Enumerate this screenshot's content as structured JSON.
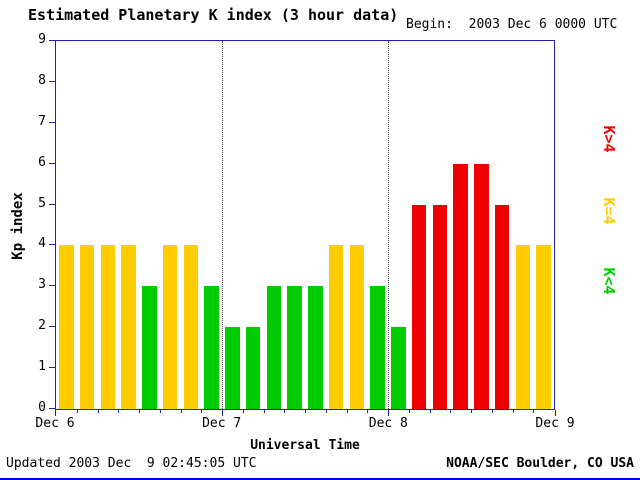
{
  "header": {
    "title": "Estimated Planetary K index (3 hour data)",
    "begin": "Begin:  2003 Dec 6 0000 UTC"
  },
  "footer": {
    "updated": "Updated 2003 Dec  9 02:45:05 UTC",
    "source": "NOAA/SEC Boulder, CO USA"
  },
  "chart_data": {
    "type": "bar",
    "title": "Estimated Planetary K index (3 hour data)",
    "xlabel": "Universal Time",
    "ylabel": "Kp index",
    "ylim": [
      0,
      9
    ],
    "y_ticks": [
      0,
      1,
      2,
      3,
      4,
      5,
      6,
      7,
      8,
      9
    ],
    "x_tick_labels": [
      "Dec 6",
      "Dec 7",
      "Dec 8",
      "Dec 9"
    ],
    "bars_per_day": 8,
    "values": [
      4,
      4,
      4,
      4,
      3,
      4,
      4,
      3,
      2,
      2,
      3,
      3,
      3,
      4,
      4,
      3,
      2,
      5,
      5,
      6,
      6,
      5,
      4,
      4
    ],
    "series": [
      {
        "name": "Dec 6",
        "values": [
          4,
          4,
          4,
          4,
          3,
          4,
          4,
          3
        ]
      },
      {
        "name": "Dec 7",
        "values": [
          2,
          2,
          3,
          3,
          3,
          4,
          4,
          3
        ]
      },
      {
        "name": "Dec 8",
        "values": [
          2,
          5,
          5,
          6,
          6,
          5,
          4,
          4
        ]
      }
    ],
    "colors": {
      "low": "#00cc00",
      "mid": "#ffcc00",
      "high": "#ee0000"
    },
    "legend": [
      {
        "label": "K>4",
        "color": "#ee0000"
      },
      {
        "label": "K=4",
        "color": "#ffcc00"
      },
      {
        "label": "K<4",
        "color": "#00cc00"
      }
    ],
    "legend_position": "right",
    "grid": false
  }
}
